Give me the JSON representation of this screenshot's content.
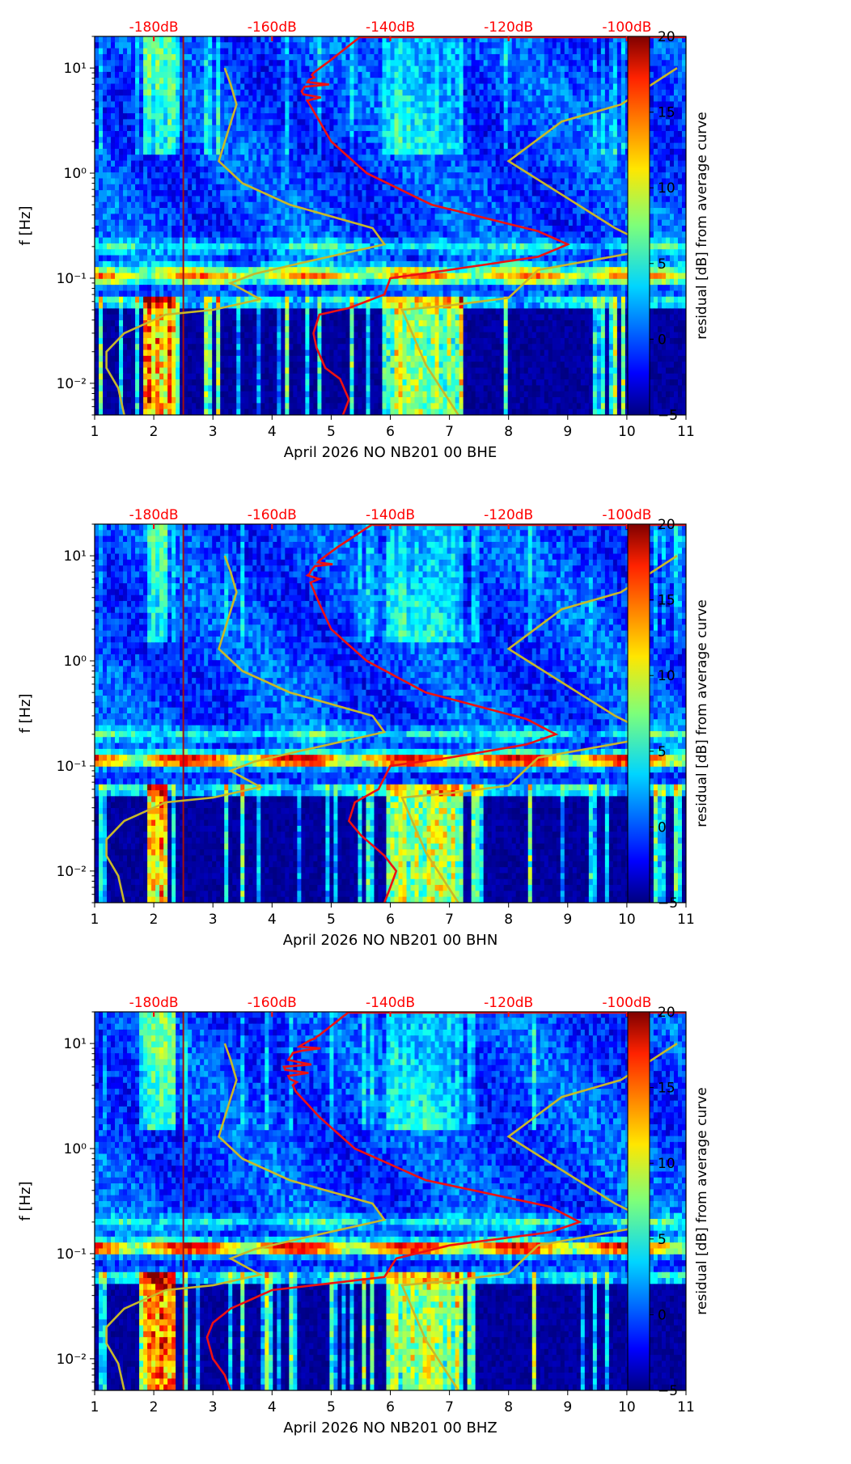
{
  "colors": {
    "red_curve": "#ee1111",
    "model_curve": "#c8b82a",
    "top_axis_text": "#ff0000",
    "vline": "#a01010"
  },
  "chart_data": [
    {
      "type": "heatmap",
      "xlabel": "April 2026 NO NB201 00 BHE",
      "ylabel": "f [Hz]",
      "x_ticks": [
        "1",
        "2",
        "3",
        "4",
        "5",
        "6",
        "7",
        "8",
        "9",
        "10",
        "11"
      ],
      "xlim": [
        1,
        11
      ],
      "ylim_hz": [
        0.005,
        20
      ],
      "y_ticks": [
        {
          "value": 10,
          "label": "10¹"
        },
        {
          "value": 1,
          "label": "10⁰"
        },
        {
          "value": 0.1,
          "label": "10⁻¹"
        },
        {
          "value": 0.01,
          "label": "10⁻²"
        }
      ],
      "top_axis_labels": [
        "-180dB",
        "-160dB",
        "-140dB",
        "-120dB",
        "-100dB"
      ],
      "colorbar": {
        "label": "residual [dB] from average curve",
        "ticks": [
          "20",
          "15",
          "10",
          "5",
          "0",
          "−5"
        ],
        "range": [
          -5,
          20
        ]
      },
      "vertical_line_day": 2.5,
      "bands": [
        {
          "f": 0.2,
          "intensity": 6
        },
        {
          "f": 0.12,
          "intensity": 9
        },
        {
          "f": 0.1,
          "intensity": 14
        },
        {
          "f": 0.06,
          "intensity": 7
        }
      ],
      "red_curve": [
        [
          5.2,
          0.005
        ],
        [
          5.3,
          0.007
        ],
        [
          5.15,
          0.011
        ],
        [
          4.9,
          0.014
        ],
        [
          4.75,
          0.022
        ],
        [
          4.7,
          0.03
        ],
        [
          4.8,
          0.045
        ],
        [
          5.3,
          0.052
        ],
        [
          5.9,
          0.07
        ],
        [
          6.0,
          0.1
        ],
        [
          7.0,
          0.12
        ],
        [
          8.5,
          0.16
        ],
        [
          9.0,
          0.21
        ],
        [
          8.5,
          0.28
        ],
        [
          6.7,
          0.5
        ],
        [
          5.6,
          1.0
        ],
        [
          5.0,
          2.0
        ],
        [
          4.75,
          3.5
        ],
        [
          4.5,
          6.0
        ],
        [
          4.7,
          9.0
        ],
        [
          5.0,
          12.0
        ],
        [
          5.5,
          20.0
        ]
      ],
      "model_curves": [
        [
          [
            1.5,
            0.005
          ],
          [
            1.4,
            0.009
          ],
          [
            1.2,
            0.014
          ],
          [
            1.2,
            0.02
          ],
          [
            1.5,
            0.03
          ],
          [
            2.2,
            0.045
          ],
          [
            3.0,
            0.05
          ],
          [
            3.8,
            0.063
          ],
          [
            3.3,
            0.09
          ],
          [
            3.7,
            0.11
          ],
          [
            4.5,
            0.14
          ],
          [
            5.9,
            0.21
          ],
          [
            5.7,
            0.3
          ],
          [
            4.3,
            0.5
          ],
          [
            3.5,
            0.8
          ],
          [
            3.1,
            1.3
          ],
          [
            3.3,
            3.0
          ],
          [
            3.4,
            4.5
          ],
          [
            3.3,
            7.0
          ],
          [
            3.2,
            10.0
          ]
        ],
        [
          [
            7.15,
            0.005
          ],
          [
            6.6,
            0.015
          ],
          [
            6.2,
            0.05
          ],
          [
            7.0,
            0.055
          ],
          [
            8.0,
            0.065
          ],
          [
            8.5,
            0.12
          ],
          [
            10.0,
            0.17
          ],
          [
            10.35,
            0.21
          ],
          [
            9.8,
            0.3
          ],
          [
            8.0,
            1.3
          ],
          [
            8.9,
            3.1
          ],
          [
            9.9,
            4.5
          ],
          [
            10.85,
            10.0
          ]
        ]
      ]
    },
    {
      "type": "heatmap",
      "xlabel": "April 2026 NO NB201 00 BHN",
      "ylabel": "f [Hz]",
      "x_ticks": [
        "1",
        "2",
        "3",
        "4",
        "5",
        "6",
        "7",
        "8",
        "9",
        "10",
        "11"
      ],
      "xlim": [
        1,
        11
      ],
      "ylim_hz": [
        0.005,
        20
      ],
      "y_ticks": [
        {
          "value": 10,
          "label": "10¹"
        },
        {
          "value": 1,
          "label": "10⁰"
        },
        {
          "value": 0.1,
          "label": "10⁻¹"
        },
        {
          "value": 0.01,
          "label": "10⁻²"
        }
      ],
      "top_axis_labels": [
        "-180dB",
        "-160dB",
        "-140dB",
        "-120dB",
        "-100dB"
      ],
      "colorbar": {
        "label": "residual [dB] from average curve",
        "ticks": [
          "20",
          "15",
          "10",
          "5",
          "0",
          "−5"
        ],
        "range": [
          -5,
          20
        ]
      },
      "vertical_line_day": 2.5,
      "bands": [
        {
          "f": 0.2,
          "intensity": 6
        },
        {
          "f": 0.12,
          "intensity": 9
        },
        {
          "f": 0.11,
          "intensity": 14
        },
        {
          "f": 0.06,
          "intensity": 7
        }
      ],
      "red_curve": [
        [
          5.9,
          0.005
        ],
        [
          6.0,
          0.007
        ],
        [
          6.1,
          0.01
        ],
        [
          5.9,
          0.014
        ],
        [
          5.5,
          0.022
        ],
        [
          5.3,
          0.03
        ],
        [
          5.4,
          0.045
        ],
        [
          5.8,
          0.06
        ],
        [
          6.0,
          0.1
        ],
        [
          7.0,
          0.12
        ],
        [
          8.3,
          0.16
        ],
        [
          8.8,
          0.2
        ],
        [
          8.3,
          0.28
        ],
        [
          6.6,
          0.5
        ],
        [
          5.6,
          1.0
        ],
        [
          5.0,
          2.0
        ],
        [
          4.8,
          3.5
        ],
        [
          4.6,
          6.5
        ],
        [
          4.8,
          9.0
        ],
        [
          5.1,
          12.0
        ],
        [
          5.7,
          20.0
        ]
      ],
      "model_curves": [
        [
          [
            1.5,
            0.005
          ],
          [
            1.4,
            0.009
          ],
          [
            1.2,
            0.014
          ],
          [
            1.2,
            0.02
          ],
          [
            1.5,
            0.03
          ],
          [
            2.2,
            0.045
          ],
          [
            3.0,
            0.05
          ],
          [
            3.8,
            0.063
          ],
          [
            3.3,
            0.09
          ],
          [
            3.7,
            0.11
          ],
          [
            4.5,
            0.14
          ],
          [
            5.9,
            0.21
          ],
          [
            5.7,
            0.3
          ],
          [
            4.3,
            0.5
          ],
          [
            3.5,
            0.8
          ],
          [
            3.1,
            1.3
          ],
          [
            3.3,
            3.0
          ],
          [
            3.4,
            4.5
          ],
          [
            3.3,
            7.0
          ],
          [
            3.2,
            10.0
          ]
        ],
        [
          [
            7.15,
            0.005
          ],
          [
            6.6,
            0.015
          ],
          [
            6.2,
            0.05
          ],
          [
            7.0,
            0.055
          ],
          [
            8.0,
            0.065
          ],
          [
            8.5,
            0.12
          ],
          [
            10.0,
            0.17
          ],
          [
            10.35,
            0.21
          ],
          [
            9.8,
            0.3
          ],
          [
            8.0,
            1.3
          ],
          [
            8.9,
            3.1
          ],
          [
            9.9,
            4.5
          ],
          [
            10.85,
            10.0
          ]
        ]
      ]
    },
    {
      "type": "heatmap",
      "xlabel": "April 2026 NO NB201 00 BHZ",
      "ylabel": "f [Hz]",
      "x_ticks": [
        "1",
        "2",
        "3",
        "4",
        "5",
        "6",
        "7",
        "8",
        "9",
        "10",
        "11"
      ],
      "xlim": [
        1,
        11
      ],
      "ylim_hz": [
        0.005,
        20
      ],
      "y_ticks": [
        {
          "value": 10,
          "label": "10¹"
        },
        {
          "value": 1,
          "label": "10⁰"
        },
        {
          "value": 0.1,
          "label": "10⁻¹"
        },
        {
          "value": 0.01,
          "label": "10⁻²"
        }
      ],
      "top_axis_labels": [
        "-180dB",
        "-160dB",
        "-140dB",
        "-120dB",
        "-100dB"
      ],
      "colorbar": {
        "label": "residual [dB] from average curve",
        "ticks": [
          "20",
          "15",
          "10",
          "5",
          "0",
          "−5"
        ],
        "range": [
          -5,
          20
        ]
      },
      "vertical_line_day": 2.5,
      "bands": [
        {
          "f": 0.2,
          "intensity": 6
        },
        {
          "f": 0.12,
          "intensity": 9
        },
        {
          "f": 0.11,
          "intensity": 14
        },
        {
          "f": 0.06,
          "intensity": 7
        }
      ],
      "red_curve": [
        [
          3.3,
          0.005
        ],
        [
          3.2,
          0.007
        ],
        [
          3.0,
          0.01
        ],
        [
          2.9,
          0.016
        ],
        [
          3.0,
          0.022
        ],
        [
          3.3,
          0.03
        ],
        [
          4.0,
          0.045
        ],
        [
          5.9,
          0.06
        ],
        [
          6.1,
          0.09
        ],
        [
          7.0,
          0.12
        ],
        [
          8.7,
          0.16
        ],
        [
          9.2,
          0.2
        ],
        [
          8.7,
          0.28
        ],
        [
          6.6,
          0.5
        ],
        [
          5.4,
          1.0
        ],
        [
          4.8,
          2.0
        ],
        [
          4.4,
          3.5
        ],
        [
          4.2,
          6.0
        ],
        [
          4.4,
          9.0
        ],
        [
          4.8,
          12.0
        ],
        [
          5.3,
          20.0
        ]
      ],
      "model_curves": [
        [
          [
            1.5,
            0.005
          ],
          [
            1.4,
            0.009
          ],
          [
            1.2,
            0.014
          ],
          [
            1.2,
            0.02
          ],
          [
            1.5,
            0.03
          ],
          [
            2.2,
            0.045
          ],
          [
            3.0,
            0.05
          ],
          [
            3.8,
            0.063
          ],
          [
            3.3,
            0.09
          ],
          [
            3.7,
            0.11
          ],
          [
            4.5,
            0.14
          ],
          [
            5.9,
            0.21
          ],
          [
            5.7,
            0.3
          ],
          [
            4.3,
            0.5
          ],
          [
            3.5,
            0.8
          ],
          [
            3.1,
            1.3
          ],
          [
            3.3,
            3.0
          ],
          [
            3.4,
            4.5
          ],
          [
            3.3,
            7.0
          ],
          [
            3.2,
            10.0
          ]
        ],
        [
          [
            7.15,
            0.005
          ],
          [
            6.6,
            0.015
          ],
          [
            6.2,
            0.05
          ],
          [
            7.0,
            0.055
          ],
          [
            8.0,
            0.065
          ],
          [
            8.5,
            0.12
          ],
          [
            10.0,
            0.17
          ],
          [
            10.35,
            0.21
          ],
          [
            9.8,
            0.3
          ],
          [
            8.0,
            1.3
          ],
          [
            8.9,
            3.1
          ],
          [
            9.9,
            4.5
          ],
          [
            10.85,
            10.0
          ]
        ]
      ]
    }
  ]
}
